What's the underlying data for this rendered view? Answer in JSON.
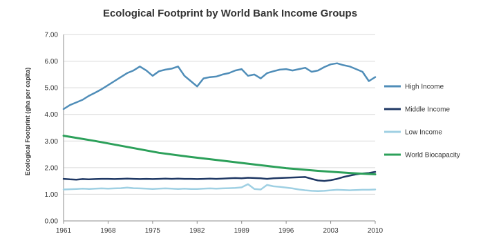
{
  "chart_data": {
    "type": "line",
    "title": "Ecological Footprint by World Bank Income Groups",
    "xlabel": "",
    "ylabel": "Ecological Footprint (gha per capita)",
    "xlim": [
      1961,
      2010
    ],
    "ylim": [
      0,
      7
    ],
    "x_ticks": [
      "1961",
      "1968",
      "1975",
      "1982",
      "1989",
      "1996",
      "2003",
      "2010"
    ],
    "y_ticks": [
      "0.00",
      "1.00",
      "2.00",
      "3.00",
      "4.00",
      "5.00",
      "6.00",
      "7.00"
    ],
    "grid": true,
    "legend_position": "right",
    "series": [
      {
        "name": "High Income",
        "color": "#4f8db8",
        "x": [
          1961,
          1962,
          1963,
          1964,
          1965,
          1966,
          1967,
          1968,
          1969,
          1970,
          1971,
          1972,
          1973,
          1974,
          1975,
          1976,
          1977,
          1978,
          1979,
          1980,
          1981,
          1982,
          1983,
          1984,
          1985,
          1986,
          1987,
          1988,
          1989,
          1990,
          1991,
          1992,
          1993,
          1994,
          1995,
          1996,
          1997,
          1998,
          1999,
          2000,
          2001,
          2002,
          2003,
          2004,
          2005,
          2006,
          2007,
          2008,
          2009,
          2010
        ],
        "y": [
          4.2,
          4.35,
          4.45,
          4.55,
          4.7,
          4.82,
          4.95,
          5.1,
          5.25,
          5.4,
          5.55,
          5.65,
          5.8,
          5.65,
          5.45,
          5.62,
          5.68,
          5.72,
          5.8,
          5.45,
          5.25,
          5.05,
          5.35,
          5.4,
          5.42,
          5.5,
          5.55,
          5.65,
          5.7,
          5.45,
          5.5,
          5.35,
          5.55,
          5.62,
          5.68,
          5.7,
          5.65,
          5.7,
          5.75,
          5.6,
          5.65,
          5.78,
          5.88,
          5.92,
          5.85,
          5.8,
          5.7,
          5.6,
          5.25,
          5.4
        ]
      },
      {
        "name": "Middle Income",
        "color": "#1f3864",
        "x": [
          1961,
          1962,
          1963,
          1964,
          1965,
          1966,
          1967,
          1968,
          1969,
          1970,
          1971,
          1972,
          1973,
          1974,
          1975,
          1976,
          1977,
          1978,
          1979,
          1980,
          1981,
          1982,
          1983,
          1984,
          1985,
          1986,
          1987,
          1988,
          1989,
          1990,
          1991,
          1992,
          1993,
          1994,
          1995,
          1996,
          1997,
          1998,
          1999,
          2000,
          2001,
          2002,
          2003,
          2004,
          2005,
          2006,
          2007,
          2008,
          2009,
          2010
        ],
        "y": [
          1.58,
          1.56,
          1.55,
          1.57,
          1.56,
          1.57,
          1.58,
          1.58,
          1.57,
          1.58,
          1.59,
          1.58,
          1.57,
          1.58,
          1.57,
          1.58,
          1.59,
          1.58,
          1.59,
          1.58,
          1.58,
          1.57,
          1.58,
          1.59,
          1.58,
          1.59,
          1.6,
          1.61,
          1.6,
          1.62,
          1.61,
          1.6,
          1.58,
          1.6,
          1.61,
          1.62,
          1.63,
          1.64,
          1.65,
          1.58,
          1.52,
          1.5,
          1.53,
          1.58,
          1.65,
          1.7,
          1.75,
          1.78,
          1.8,
          1.84
        ]
      },
      {
        "name": "Low Income",
        "color": "#9fd0e3",
        "x": [
          1961,
          1962,
          1963,
          1964,
          1965,
          1966,
          1967,
          1968,
          1969,
          1970,
          1971,
          1972,
          1973,
          1974,
          1975,
          1976,
          1977,
          1978,
          1979,
          1980,
          1981,
          1982,
          1983,
          1984,
          1985,
          1986,
          1987,
          1988,
          1989,
          1990,
          1991,
          1992,
          1993,
          1994,
          1995,
          1996,
          1997,
          1998,
          1999,
          2000,
          2001,
          2002,
          2003,
          2004,
          2005,
          2006,
          2007,
          2008,
          2009,
          2010
        ],
        "y": [
          1.18,
          1.19,
          1.2,
          1.21,
          1.2,
          1.21,
          1.22,
          1.21,
          1.22,
          1.23,
          1.25,
          1.23,
          1.22,
          1.21,
          1.2,
          1.21,
          1.22,
          1.21,
          1.2,
          1.21,
          1.2,
          1.2,
          1.21,
          1.22,
          1.21,
          1.22,
          1.23,
          1.24,
          1.26,
          1.38,
          1.2,
          1.18,
          1.35,
          1.3,
          1.28,
          1.25,
          1.22,
          1.18,
          1.15,
          1.13,
          1.12,
          1.13,
          1.15,
          1.17,
          1.16,
          1.15,
          1.16,
          1.17,
          1.17,
          1.18
        ]
      },
      {
        "name": "World Biocapacity",
        "color": "#2ca05a",
        "x": [
          1961,
          1966,
          1971,
          1976,
          1981,
          1986,
          1991,
          1996,
          2001,
          2006,
          2010
        ],
        "y": [
          3.2,
          3.0,
          2.78,
          2.56,
          2.4,
          2.26,
          2.12,
          1.98,
          1.88,
          1.8,
          1.75
        ]
      }
    ]
  }
}
